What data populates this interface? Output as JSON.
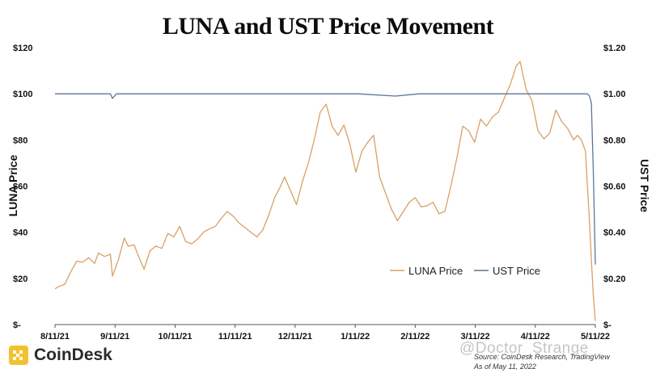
{
  "chart_data": {
    "type": "line",
    "title": "LUNA and UST Price Movement",
    "xlabel": "",
    "ylabel_left": "LUNA Price",
    "ylabel_right": "UST Price",
    "ylim_left": [
      0,
      120
    ],
    "ylim_right": [
      0,
      1.2
    ],
    "yticks_left": [
      "$-",
      "$20",
      "$40",
      "$60",
      "$80",
      "$100",
      "$120"
    ],
    "yticks_right": [
      "$-",
      "$0.20",
      "$0.40",
      "$0.60",
      "$0.80",
      "$1.00",
      "$1.20"
    ],
    "x_tick_labels": [
      "8/11/21",
      "9/11/21",
      "10/11/21",
      "11/11/21",
      "12/11/21",
      "1/11/22",
      "2/11/22",
      "3/11/22",
      "4/11/22",
      "5/11/22"
    ],
    "grid": false,
    "legend_position": "bottom-right",
    "series": [
      {
        "name": "LUNA Price",
        "axis": "left",
        "color": "#d9a066",
        "points": [
          [
            "2021-08-11",
            15.5
          ],
          [
            "2021-08-13",
            16.5
          ],
          [
            "2021-08-16",
            17.5
          ],
          [
            "2021-08-19",
            23.0
          ],
          [
            "2021-08-22",
            27.5
          ],
          [
            "2021-08-25",
            27.0
          ],
          [
            "2021-08-28",
            29.0
          ],
          [
            "2021-08-31",
            26.5
          ],
          [
            "2021-09-02",
            31.0
          ],
          [
            "2021-09-05",
            29.5
          ],
          [
            "2021-09-08",
            30.5
          ],
          [
            "2021-09-09",
            21.0
          ],
          [
            "2021-09-12",
            28.0
          ],
          [
            "2021-09-15",
            37.5
          ],
          [
            "2021-09-17",
            34.0
          ],
          [
            "2021-09-20",
            34.5
          ],
          [
            "2021-09-22",
            30.0
          ],
          [
            "2021-09-25",
            24.0
          ],
          [
            "2021-09-28",
            32.0
          ],
          [
            "2021-10-01",
            34.0
          ],
          [
            "2021-10-04",
            33.0
          ],
          [
            "2021-10-07",
            39.5
          ],
          [
            "2021-10-10",
            38.0
          ],
          [
            "2021-10-13",
            42.5
          ],
          [
            "2021-10-16",
            36.0
          ],
          [
            "2021-10-19",
            35.0
          ],
          [
            "2021-10-22",
            37.0
          ],
          [
            "2021-10-25",
            40.0
          ],
          [
            "2021-10-28",
            41.5
          ],
          [
            "2021-10-31",
            42.5
          ],
          [
            "2021-11-03",
            46.0
          ],
          [
            "2021-11-06",
            49.0
          ],
          [
            "2021-11-09",
            47.0
          ],
          [
            "2021-11-12",
            44.0
          ],
          [
            "2021-11-15",
            42.0
          ],
          [
            "2021-11-18",
            40.0
          ],
          [
            "2021-11-21",
            38.0
          ],
          [
            "2021-11-24",
            41.0
          ],
          [
            "2021-11-27",
            47.5
          ],
          [
            "2021-11-30",
            55.0
          ],
          [
            "2021-12-03",
            60.0
          ],
          [
            "2021-12-05",
            64.0
          ],
          [
            "2021-12-08",
            58.0
          ],
          [
            "2021-12-11",
            52.0
          ],
          [
            "2021-12-14",
            62.0
          ],
          [
            "2021-12-17",
            70.0
          ],
          [
            "2021-12-20",
            80.0
          ],
          [
            "2021-12-23",
            92.0
          ],
          [
            "2021-12-26",
            95.5
          ],
          [
            "2021-12-29",
            86.0
          ],
          [
            "2022-01-01",
            82.0
          ],
          [
            "2022-01-04",
            86.5
          ],
          [
            "2022-01-07",
            78.0
          ],
          [
            "2022-01-10",
            66.0
          ],
          [
            "2022-01-13",
            75.0
          ],
          [
            "2022-01-16",
            79.0
          ],
          [
            "2022-01-19",
            82.0
          ],
          [
            "2022-01-22",
            64.0
          ],
          [
            "2022-01-25",
            57.0
          ],
          [
            "2022-01-28",
            50.0
          ],
          [
            "2022-01-31",
            45.0
          ],
          [
            "2022-02-03",
            49.0
          ],
          [
            "2022-02-06",
            53.0
          ],
          [
            "2022-02-09",
            55.0
          ],
          [
            "2022-02-12",
            51.0
          ],
          [
            "2022-02-15",
            51.5
          ],
          [
            "2022-02-18",
            53.0
          ],
          [
            "2022-02-21",
            48.0
          ],
          [
            "2022-02-24",
            49.0
          ],
          [
            "2022-02-27",
            60.0
          ],
          [
            "2022-03-02",
            72.0
          ],
          [
            "2022-03-05",
            86.0
          ],
          [
            "2022-03-08",
            84.0
          ],
          [
            "2022-03-11",
            79.0
          ],
          [
            "2022-03-14",
            89.0
          ],
          [
            "2022-03-17",
            86.0
          ],
          [
            "2022-03-20",
            90.0
          ],
          [
            "2022-03-23",
            92.0
          ],
          [
            "2022-03-26",
            98.0
          ],
          [
            "2022-03-29",
            104.0
          ],
          [
            "2022-04-01",
            112.0
          ],
          [
            "2022-04-03",
            114.0
          ],
          [
            "2022-04-06",
            102.0
          ],
          [
            "2022-04-09",
            97.0
          ],
          [
            "2022-04-12",
            84.0
          ],
          [
            "2022-04-15",
            80.5
          ],
          [
            "2022-04-18",
            83.0
          ],
          [
            "2022-04-21",
            93.0
          ],
          [
            "2022-04-24",
            88.0
          ],
          [
            "2022-04-27",
            85.0
          ],
          [
            "2022-04-30",
            80.0
          ],
          [
            "2022-05-02",
            82.0
          ],
          [
            "2022-05-04",
            80.0
          ],
          [
            "2022-05-06",
            75.0
          ],
          [
            "2022-05-07",
            60.0
          ],
          [
            "2022-05-08",
            45.0
          ],
          [
            "2022-05-09",
            28.0
          ],
          [
            "2022-05-10",
            12.0
          ],
          [
            "2022-05-11",
            1.5
          ]
        ]
      },
      {
        "name": "UST Price",
        "axis": "right",
        "color": "#5f7594",
        "points": [
          [
            "2021-08-11",
            1.0
          ],
          [
            "2021-08-25",
            1.0
          ],
          [
            "2021-09-08",
            1.0
          ],
          [
            "2021-09-09",
            0.98
          ],
          [
            "2021-09-11",
            1.0
          ],
          [
            "2021-10-11",
            1.0
          ],
          [
            "2021-11-11",
            1.0
          ],
          [
            "2021-12-11",
            1.0
          ],
          [
            "2022-01-11",
            1.0
          ],
          [
            "2022-01-30",
            0.99
          ],
          [
            "2022-02-11",
            1.0
          ],
          [
            "2022-03-11",
            1.0
          ],
          [
            "2022-04-11",
            1.0
          ],
          [
            "2022-05-07",
            1.0
          ],
          [
            "2022-05-08",
            0.99
          ],
          [
            "2022-05-09",
            0.96
          ],
          [
            "2022-05-10",
            0.65
          ],
          [
            "2022-05-11",
            0.26
          ]
        ]
      }
    ]
  },
  "brand": {
    "name": "CoinDesk"
  },
  "source": {
    "line1": "Source: CoinDesk Research, TradingView",
    "line2": "As of May 11, 2022"
  },
  "watermark": {
    "text": "@Doctor_Strange"
  }
}
